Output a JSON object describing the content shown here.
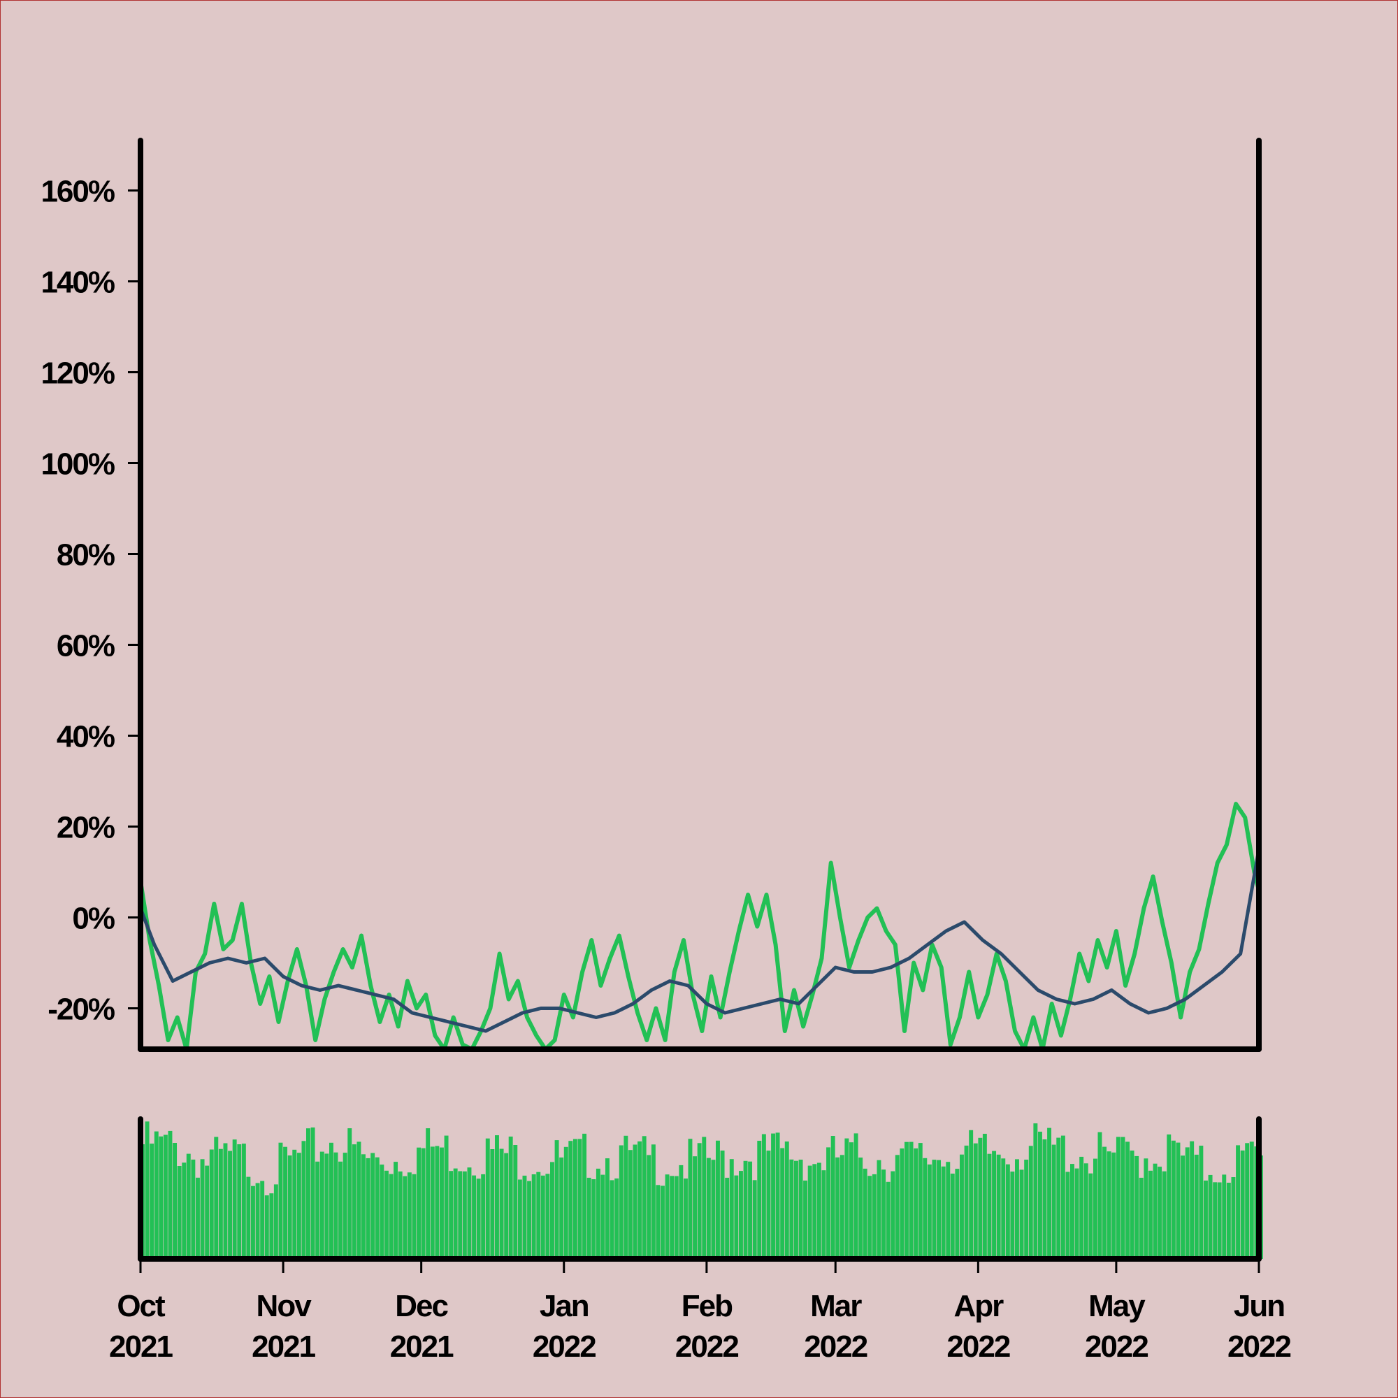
{
  "colors": {
    "background": "#dfc8c8",
    "return_line": "#22c055",
    "moving_average": "#2b4a6b",
    "volume_bars": "#22c055",
    "axes": "#000000"
  },
  "chart_data": [
    {
      "type": "line",
      "title": "",
      "xlabel": "",
      "ylabel": "",
      "xlim": [
        "2021-10-01",
        "2022-06-01"
      ],
      "ylim": [
        -29,
        171
      ],
      "y_unit": "%",
      "y_ticks": [
        {
          "value": -20,
          "label": "-20%"
        },
        {
          "value": 0,
          "label": "0%"
        },
        {
          "value": 20,
          "label": "20%"
        },
        {
          "value": 40,
          "label": "40%"
        },
        {
          "value": 60,
          "label": "60%"
        },
        {
          "value": 80,
          "label": "80%"
        },
        {
          "value": 100,
          "label": "100%"
        },
        {
          "value": 120,
          "label": "120%"
        },
        {
          "value": 140,
          "label": "140%"
        },
        {
          "value": 160,
          "label": "160%"
        }
      ],
      "grid": false,
      "series": [
        {
          "values": [
            [
              "2021-10-01",
              8
            ],
            [
              "2021-10-03",
              -5
            ],
            [
              "2021-10-05",
              -15
            ],
            [
              "2021-10-07",
              -27
            ],
            [
              "2021-10-09",
              -22
            ],
            [
              "2021-10-11",
              -29
            ],
            [
              "2021-10-13",
              -12
            ],
            [
              "2021-10-15",
              -8
            ],
            [
              "2021-10-17",
              3
            ],
            [
              "2021-10-19",
              -7
            ],
            [
              "2021-10-21",
              -5
            ],
            [
              "2021-10-23",
              3
            ],
            [
              "2021-10-25",
              -10
            ],
            [
              "2021-10-27",
              -19
            ],
            [
              "2021-10-29",
              -13
            ],
            [
              "2021-10-31",
              -23
            ],
            [
              "2021-11-02",
              -14
            ],
            [
              "2021-11-04",
              -7
            ],
            [
              "2021-11-06",
              -15
            ],
            [
              "2021-11-08",
              -27
            ],
            [
              "2021-11-10",
              -18
            ],
            [
              "2021-11-12",
              -12
            ],
            [
              "2021-11-14",
              -7
            ],
            [
              "2021-11-16",
              -11
            ],
            [
              "2021-11-18",
              -4
            ],
            [
              "2021-11-20",
              -15
            ],
            [
              "2021-11-22",
              -23
            ],
            [
              "2021-11-24",
              -17
            ],
            [
              "2021-11-26",
              -24
            ],
            [
              "2021-11-28",
              -14
            ],
            [
              "2021-11-30",
              -20
            ],
            [
              "2021-12-02",
              -17
            ],
            [
              "2021-12-04",
              -26
            ],
            [
              "2021-12-06",
              -29
            ],
            [
              "2021-12-08",
              -22
            ],
            [
              "2021-12-10",
              -28
            ],
            [
              "2021-12-12",
              -29
            ],
            [
              "2021-12-14",
              -25
            ],
            [
              "2021-12-16",
              -20
            ],
            [
              "2021-12-18",
              -8
            ],
            [
              "2021-12-20",
              -18
            ],
            [
              "2021-12-22",
              -14
            ],
            [
              "2021-12-24",
              -22
            ],
            [
              "2021-12-26",
              -26
            ],
            [
              "2021-12-28",
              -29
            ],
            [
              "2021-12-30",
              -27
            ],
            [
              "2022-01-01",
              -17
            ],
            [
              "2022-01-03",
              -22
            ],
            [
              "2022-01-05",
              -12
            ],
            [
              "2022-01-07",
              -5
            ],
            [
              "2022-01-09",
              -15
            ],
            [
              "2022-01-11",
              -9
            ],
            [
              "2022-01-13",
              -4
            ],
            [
              "2022-01-15",
              -13
            ],
            [
              "2022-01-17",
              -21
            ],
            [
              "2022-01-19",
              -27
            ],
            [
              "2022-01-21",
              -20
            ],
            [
              "2022-01-23",
              -27
            ],
            [
              "2022-01-25",
              -12
            ],
            [
              "2022-01-27",
              -5
            ],
            [
              "2022-01-29",
              -17
            ],
            [
              "2022-01-31",
              -25
            ],
            [
              "2022-02-02",
              -13
            ],
            [
              "2022-02-04",
              -22
            ],
            [
              "2022-02-06",
              -12
            ],
            [
              "2022-02-08",
              -3
            ],
            [
              "2022-02-10",
              5
            ],
            [
              "2022-02-12",
              -2
            ],
            [
              "2022-02-14",
              5
            ],
            [
              "2022-02-16",
              -6
            ],
            [
              "2022-02-18",
              -25
            ],
            [
              "2022-02-20",
              -16
            ],
            [
              "2022-02-22",
              -24
            ],
            [
              "2022-02-24",
              -17
            ],
            [
              "2022-02-26",
              -9
            ],
            [
              "2022-02-28",
              12
            ],
            [
              "2022-03-02",
              0
            ],
            [
              "2022-03-04",
              -11
            ],
            [
              "2022-03-06",
              -5
            ],
            [
              "2022-03-08",
              0
            ],
            [
              "2022-03-10",
              2
            ],
            [
              "2022-03-12",
              -3
            ],
            [
              "2022-03-14",
              -6
            ],
            [
              "2022-03-16",
              -25
            ],
            [
              "2022-03-18",
              -10
            ],
            [
              "2022-03-20",
              -16
            ],
            [
              "2022-03-22",
              -6
            ],
            [
              "2022-03-24",
              -11
            ],
            [
              "2022-03-26",
              -28
            ],
            [
              "2022-03-28",
              -22
            ],
            [
              "2022-03-30",
              -12
            ],
            [
              "2022-04-01",
              -22
            ],
            [
              "2022-04-03",
              -17
            ],
            [
              "2022-04-05",
              -8
            ],
            [
              "2022-04-07",
              -14
            ],
            [
              "2022-04-09",
              -25
            ],
            [
              "2022-04-11",
              -29
            ],
            [
              "2022-04-13",
              -22
            ],
            [
              "2022-04-15",
              -29
            ],
            [
              "2022-04-17",
              -19
            ],
            [
              "2022-04-19",
              -26
            ],
            [
              "2022-04-21",
              -18
            ],
            [
              "2022-04-23",
              -8
            ],
            [
              "2022-04-25",
              -14
            ],
            [
              "2022-04-27",
              -5
            ],
            [
              "2022-04-29",
              -11
            ],
            [
              "2022-05-01",
              -3
            ],
            [
              "2022-05-03",
              -15
            ],
            [
              "2022-05-05",
              -8
            ],
            [
              "2022-05-07",
              2
            ],
            [
              "2022-05-09",
              9
            ],
            [
              "2022-05-11",
              -1
            ],
            [
              "2022-05-13",
              -10
            ],
            [
              "2022-05-15",
              -22
            ],
            [
              "2022-05-17",
              -12
            ],
            [
              "2022-05-19",
              -7
            ],
            [
              "2022-05-21",
              3
            ],
            [
              "2022-05-23",
              12
            ],
            [
              "2022-05-25",
              16
            ],
            [
              "2022-05-27",
              25
            ],
            [
              "2022-05-29",
              22
            ],
            [
              "2022-05-31",
              10
            ],
            [
              "2022-06-01",
              6
            ]
          ]
        },
        {
          "values": [
            [
              "2021-10-01",
              2
            ],
            [
              "2021-10-04",
              -6
            ],
            [
              "2021-10-08",
              -14
            ],
            [
              "2021-10-12",
              -12
            ],
            [
              "2021-10-16",
              -10
            ],
            [
              "2021-10-20",
              -9
            ],
            [
              "2021-10-24",
              -10
            ],
            [
              "2021-10-28",
              -9
            ],
            [
              "2021-11-01",
              -13
            ],
            [
              "2021-11-05",
              -15
            ],
            [
              "2021-11-09",
              -16
            ],
            [
              "2021-11-13",
              -15
            ],
            [
              "2021-11-17",
              -16
            ],
            [
              "2021-11-21",
              -17
            ],
            [
              "2021-11-25",
              -18
            ],
            [
              "2021-11-29",
              -21
            ],
            [
              "2021-12-03",
              -22
            ],
            [
              "2021-12-07",
              -23
            ],
            [
              "2021-12-11",
              -24
            ],
            [
              "2021-12-15",
              -25
            ],
            [
              "2021-12-19",
              -23
            ],
            [
              "2021-12-23",
              -21
            ],
            [
              "2021-12-27",
              -20
            ],
            [
              "2021-12-31",
              -20
            ],
            [
              "2022-01-04",
              -21
            ],
            [
              "2022-01-08",
              -22
            ],
            [
              "2022-01-12",
              -21
            ],
            [
              "2022-01-16",
              -19
            ],
            [
              "2022-01-20",
              -16
            ],
            [
              "2022-01-24",
              -14
            ],
            [
              "2022-01-28",
              -15
            ],
            [
              "2022-02-01",
              -19
            ],
            [
              "2022-02-05",
              -21
            ],
            [
              "2022-02-09",
              -20
            ],
            [
              "2022-02-13",
              -19
            ],
            [
              "2022-02-17",
              -18
            ],
            [
              "2022-02-21",
              -19
            ],
            [
              "2022-02-25",
              -15
            ],
            [
              "2022-03-01",
              -11
            ],
            [
              "2022-03-05",
              -12
            ],
            [
              "2022-03-09",
              -12
            ],
            [
              "2022-03-13",
              -11
            ],
            [
              "2022-03-17",
              -9
            ],
            [
              "2022-03-21",
              -6
            ],
            [
              "2022-03-25",
              -3
            ],
            [
              "2022-03-29",
              -1
            ],
            [
              "2022-04-02",
              -5
            ],
            [
              "2022-04-06",
              -8
            ],
            [
              "2022-04-10",
              -12
            ],
            [
              "2022-04-14",
              -16
            ],
            [
              "2022-04-18",
              -18
            ],
            [
              "2022-04-22",
              -19
            ],
            [
              "2022-04-26",
              -18
            ],
            [
              "2022-04-30",
              -16
            ],
            [
              "2022-05-04",
              -19
            ],
            [
              "2022-05-08",
              -21
            ],
            [
              "2022-05-12",
              -20
            ],
            [
              "2022-05-16",
              -18
            ],
            [
              "2022-05-20",
              -15
            ],
            [
              "2022-05-24",
              -12
            ],
            [
              "2022-05-28",
              -8
            ],
            [
              "2022-06-01",
              15
            ]
          ]
        }
      ]
    },
    {
      "type": "bar",
      "title": "",
      "xlabel": "",
      "ylabel": "",
      "xlim": [
        "2021-10-01",
        "2022-06-01"
      ],
      "ylim": [
        0,
        1
      ],
      "x_ticks": [
        {
          "value": "2021-10-01",
          "label": [
            "Oct",
            "2021"
          ]
        },
        {
          "value": "2021-11-01",
          "label": [
            "Nov",
            "2021"
          ]
        },
        {
          "value": "2021-12-01",
          "label": [
            "Dec",
            "2021"
          ]
        },
        {
          "value": "2022-01-01",
          "label": [
            "Jan",
            "2022"
          ]
        },
        {
          "value": "2022-02-01",
          "label": [
            "Feb",
            "2022"
          ]
        },
        {
          "value": "2022-03-01",
          "label": [
            "Mar",
            "2022"
          ]
        },
        {
          "value": "2022-04-01",
          "label": [
            "Apr",
            "2022"
          ]
        },
        {
          "value": "2022-05-01",
          "label": [
            "May",
            "2022"
          ]
        },
        {
          "value": "2022-06-01",
          "label": [
            "Jun",
            "2022"
          ]
        }
      ],
      "series": [
        {
          "values": [
            [
              "2021-10-01",
              0.82
            ],
            [
              "2021-10-08",
              0.8
            ],
            [
              "2021-10-15",
              0.7
            ],
            [
              "2021-10-22",
              0.72
            ],
            [
              "2021-10-29",
              0.62
            ],
            [
              "2021-11-05",
              0.74
            ],
            [
              "2021-11-12",
              0.86
            ],
            [
              "2021-11-19",
              0.7
            ],
            [
              "2021-11-26",
              0.72
            ],
            [
              "2021-12-03",
              0.8
            ],
            [
              "2021-12-10",
              0.74
            ],
            [
              "2021-12-17",
              0.76
            ],
            [
              "2021-12-24",
              0.72
            ],
            [
              "2021-12-31",
              0.7
            ],
            [
              "2022-01-07",
              0.74
            ],
            [
              "2022-01-14",
              0.72
            ],
            [
              "2022-01-21",
              0.7
            ],
            [
              "2022-01-28",
              0.68
            ],
            [
              "2022-02-04",
              0.72
            ],
            [
              "2022-02-11",
              0.74
            ],
            [
              "2022-02-18",
              0.76
            ],
            [
              "2022-02-25",
              0.7
            ],
            [
              "2022-03-04",
              0.74
            ],
            [
              "2022-03-11",
              0.72
            ],
            [
              "2022-03-18",
              0.7
            ],
            [
              "2022-03-25",
              0.76
            ],
            [
              "2022-04-01",
              0.74
            ],
            [
              "2022-04-08",
              0.78
            ],
            [
              "2022-04-15",
              0.8
            ],
            [
              "2022-04-22",
              0.76
            ],
            [
              "2022-04-29",
              0.72
            ],
            [
              "2022-05-06",
              0.74
            ],
            [
              "2022-05-13",
              0.76
            ],
            [
              "2022-05-20",
              0.64
            ],
            [
              "2022-05-27",
              0.7
            ],
            [
              "2022-06-01",
              0.72
            ]
          ]
        }
      ]
    }
  ]
}
